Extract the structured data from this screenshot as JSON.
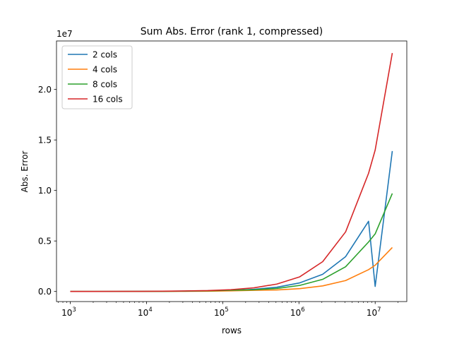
{
  "chart_data": {
    "type": "line",
    "title": "Sum Abs. Error (rank 1, compressed)",
    "xlabel": "rows",
    "ylabel": "Abs. Error",
    "x_scale": "log",
    "xlim": [
      660,
      26000000
    ],
    "ylim": [
      -1000000,
      24800000
    ],
    "y_multiplier_label": "1e7",
    "x_ticks": [
      {
        "value": 1000,
        "base": "10",
        "exp": "3"
      },
      {
        "value": 10000,
        "base": "10",
        "exp": "4"
      },
      {
        "value": 100000,
        "base": "10",
        "exp": "5"
      },
      {
        "value": 1000000,
        "base": "10",
        "exp": "6"
      },
      {
        "value": 10000000,
        "base": "10",
        "exp": "7"
      }
    ],
    "y_ticks": [
      {
        "value": 0,
        "label": "0.0"
      },
      {
        "value": 5000000,
        "label": "0.5"
      },
      {
        "value": 10000000,
        "label": "1.0"
      },
      {
        "value": 15000000,
        "label": "1.5"
      },
      {
        "value": 20000000,
        "label": "2.0"
      }
    ],
    "legend_position": "top-left",
    "grid": false,
    "series": [
      {
        "name": "2 cols",
        "color": "#1f77b4",
        "x": [
          1000,
          2000,
          4000,
          8000,
          16000,
          32000,
          64000,
          128000,
          256000,
          512000,
          1024000,
          2048000,
          4096000,
          8192000,
          10000000,
          16777216
        ],
        "y": [
          0,
          2000,
          5000,
          10000,
          20000,
          40000,
          70000,
          100000,
          210000,
          420000,
          850000,
          1700000,
          3450000,
          6950000,
          500000,
          13900000
        ]
      },
      {
        "name": "4 cols",
        "color": "#ff7f0e",
        "x": [
          1000,
          2000,
          4000,
          8000,
          16000,
          32000,
          64000,
          128000,
          256000,
          512000,
          1024000,
          2048000,
          4096000,
          8192000,
          10000000,
          16777216
        ],
        "y": [
          0,
          1000,
          2000,
          4000,
          8000,
          15000,
          30000,
          60000,
          110000,
          150000,
          280000,
          550000,
          1080000,
          2160000,
          2600000,
          4350000
        ]
      },
      {
        "name": "8 cols",
        "color": "#2ca02c",
        "x": [
          1000,
          2000,
          4000,
          8000,
          16000,
          32000,
          64000,
          128000,
          256000,
          512000,
          1024000,
          2048000,
          4096000,
          8192000,
          10000000,
          16777216
        ],
        "y": [
          0,
          1500,
          3000,
          6000,
          12000,
          30000,
          60000,
          120000,
          170000,
          300000,
          600000,
          1200000,
          2450000,
          4900000,
          5700000,
          9700000
        ]
      },
      {
        "name": "16 cols",
        "color": "#d62728",
        "x": [
          1000,
          2000,
          4000,
          8000,
          16000,
          32000,
          64000,
          128000,
          256000,
          512000,
          1024000,
          2048000,
          4096000,
          8192000,
          10000000,
          16777216
        ],
        "y": [
          0,
          3000,
          6000,
          12000,
          25000,
          50000,
          90000,
          180000,
          360000,
          730000,
          1450000,
          2950000,
          5900000,
          11700000,
          14000000,
          23600000
        ]
      }
    ]
  }
}
